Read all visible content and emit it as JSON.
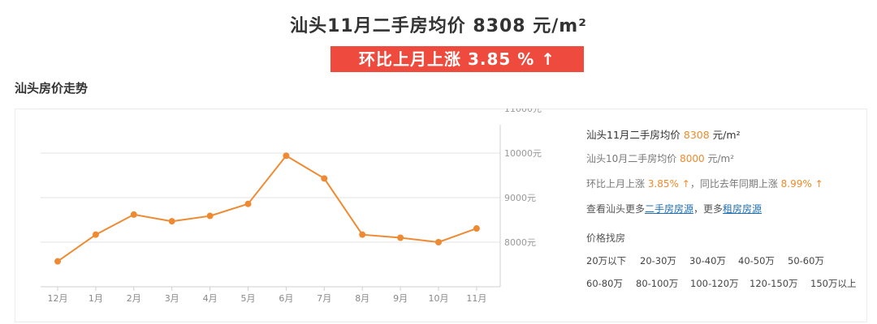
{
  "headline": "汕头11月二手房均价 8308 元/m²",
  "change_badge": "环比上月上涨 3.85 % ↑",
  "section_title": "汕头房价走势",
  "chart_data": {
    "type": "line",
    "title": "",
    "xlabel": "",
    "ylabel": "",
    "categories": [
      "12月",
      "1月",
      "2月",
      "3月",
      "4月",
      "5月",
      "6月",
      "7月",
      "8月",
      "9月",
      "10月",
      "11月"
    ],
    "values": [
      7570,
      8170,
      8620,
      8470,
      8590,
      8860,
      9940,
      9430,
      8170,
      8100,
      8000,
      8308
    ],
    "ylim": [
      7000,
      11000
    ],
    "yticks": [
      8000,
      9000,
      10000,
      11000
    ],
    "ytick_labels": [
      "8000元",
      "9000元",
      "10000元",
      "11000元"
    ],
    "grid": true,
    "line_color": "#ee8a32"
  },
  "info": {
    "l1_prefix": "汕头11月二手房均价 ",
    "l1_value": "8308",
    "l1_unit": " 元/m²",
    "l2_prefix": "汕头10月二手房均价 ",
    "l2_value": "8000",
    "l2_unit": " 元/m²",
    "l3_a": "环比上月上涨 ",
    "l3_b": "3.85% ↑",
    "l3_c": "，同比去年同期上涨 ",
    "l3_d": "8.99% ↑",
    "l4_a": "查看汕头更多",
    "l4_link1": "二手房房源",
    "l4_b": "，更多",
    "l4_link2": "租房房源"
  },
  "filters": {
    "title": "价格找房",
    "row1": [
      "20万以下",
      "20-30万",
      "30-40万",
      "40-50万",
      "50-60万"
    ],
    "row2": [
      "60-80万",
      "80-100万",
      "100-120万",
      "120-150万",
      "150万以上"
    ]
  }
}
